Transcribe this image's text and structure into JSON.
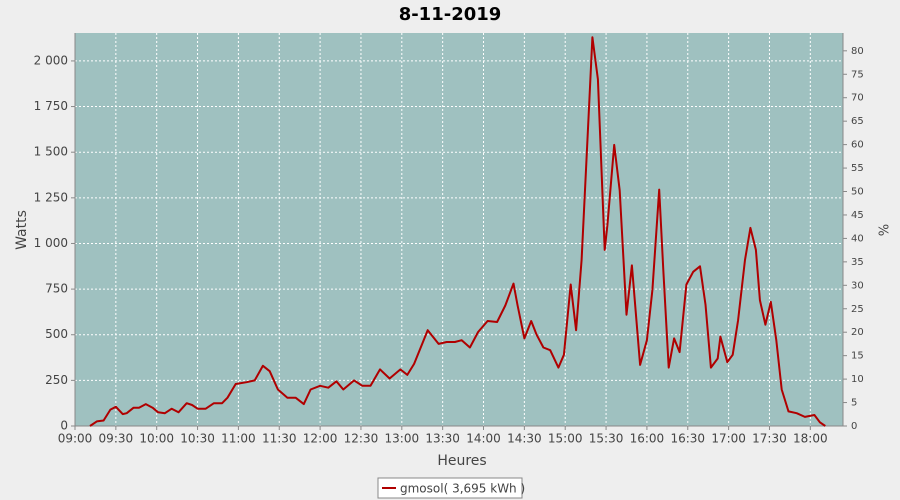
{
  "chart_data": {
    "type": "line",
    "title": "8-11-2019",
    "x_label": "Heures",
    "y_label": "Watts",
    "y2_label": "%",
    "x": [
      "09:11",
      "09:16",
      "09:21",
      "09:26",
      "09:30",
      "09:35",
      "09:38",
      "09:43",
      "09:47",
      "09:52",
      "09:57",
      "10:01",
      "10:06",
      "10:11",
      "10:16",
      "10:22",
      "10:26",
      "10:30",
      "10:36",
      "10:42",
      "10:48",
      "10:52",
      "10:58",
      "11:06",
      "11:12",
      "11:18",
      "11:23",
      "11:29",
      "11:36",
      "11:42",
      "11:48",
      "11:53",
      "12:00",
      "12:06",
      "12:12",
      "12:17",
      "12:25",
      "12:31",
      "12:37",
      "12:44",
      "12:51",
      "12:59",
      "13:04",
      "13:09",
      "13:19",
      "13:27",
      "13:33",
      "13:39",
      "13:44",
      "13:50",
      "13:56",
      "14:03",
      "14:10",
      "14:16",
      "14:22",
      "14:25",
      "14:30",
      "14:35",
      "14:39",
      "14:44",
      "14:49",
      "14:55",
      "14:59",
      "15:04",
      "15:08",
      "15:12",
      "15:17",
      "15:20",
      "15:24",
      "15:29",
      "15:31",
      "15:36",
      "15:40",
      "15:45",
      "15:49",
      "15:55",
      "16:00",
      "16:04",
      "16:09",
      "16:12",
      "16:16",
      "16:20",
      "16:24",
      "16:29",
      "16:34",
      "16:39",
      "16:43",
      "16:47",
      "16:52",
      "16:54",
      "16:59",
      "17:03",
      "17:07",
      "17:12",
      "17:16",
      "17:20",
      "17:23",
      "17:27",
      "17:31",
      "17:35",
      "17:39",
      "17:44",
      "17:50",
      "17:56",
      "18:03",
      "18:07",
      "18:11"
    ],
    "series": [
      {
        "name": "gmosol( 3,695 kWh )",
        "color": "#b00000",
        "values": [
          0,
          25,
          30,
          90,
          105,
          65,
          70,
          100,
          100,
          120,
          100,
          75,
          70,
          95,
          75,
          125,
          115,
          95,
          95,
          125,
          125,
          155,
          230,
          240,
          250,
          330,
          300,
          200,
          155,
          155,
          120,
          200,
          220,
          210,
          245,
          200,
          250,
          220,
          220,
          310,
          260,
          310,
          280,
          340,
          525,
          450,
          460,
          460,
          470,
          430,
          515,
          575,
          570,
          660,
          780,
          660,
          480,
          575,
          500,
          430,
          415,
          320,
          390,
          775,
          525,
          910,
          1675,
          2130,
          1900,
          965,
          1100,
          1540,
          1290,
          610,
          880,
          335,
          470,
          745,
          1295,
          855,
          320,
          480,
          405,
          775,
          845,
          875,
          665,
          320,
          370,
          490,
          350,
          390,
          580,
          910,
          1085,
          965,
          690,
          555,
          680,
          470,
          200,
          80,
          70,
          50,
          60,
          20,
          0
        ]
      }
    ],
    "xlim": [
      "09:00",
      "18:24"
    ],
    "xticks": [
      "09:00",
      "09:30",
      "10:00",
      "10:30",
      "11:00",
      "11:30",
      "12:00",
      "12:30",
      "13:00",
      "13:30",
      "14:00",
      "14:30",
      "15:00",
      "15:30",
      "16:00",
      "16:30",
      "17:00",
      "17:30",
      "18:00"
    ],
    "ylim": [
      0,
      2153
    ],
    "yticks": [
      0,
      250,
      500,
      750,
      {
        "value": 1000,
        "label": "1 000"
      },
      {
        "value": 1250,
        "label": "1 250"
      },
      {
        "value": 1500,
        "label": "1 500"
      },
      {
        "value": 1750,
        "label": "1 750"
      },
      {
        "value": 2000,
        "label": "2 000"
      }
    ],
    "y2lim": [
      0,
      83.8
    ],
    "y2ticks": [
      0,
      5,
      10,
      15,
      20,
      25,
      30,
      35,
      40,
      45,
      50,
      55,
      60,
      65,
      70,
      75,
      80
    ],
    "grid": true,
    "legend": "bottom",
    "plot_background": "#9fc1c0"
  }
}
